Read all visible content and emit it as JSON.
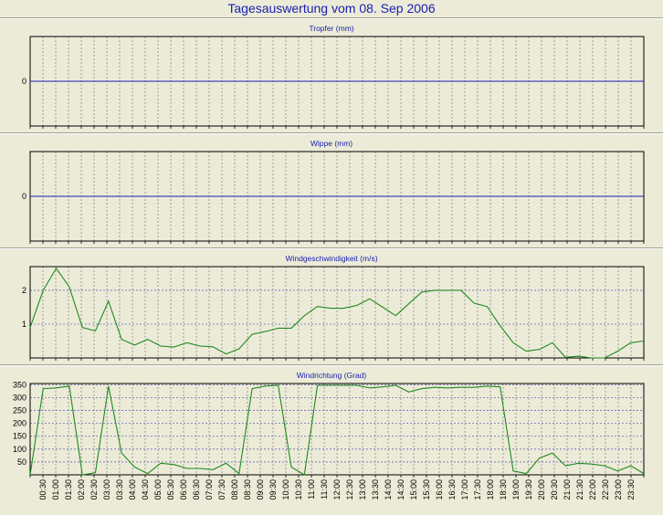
{
  "page": {
    "title": "Tagesauswertung vom 08. Sep 2006"
  },
  "chart_data": [
    {
      "type": "line",
      "title": "Tropfer (mm)",
      "ylim": [
        -1,
        1
      ],
      "yticks": [
        0
      ],
      "grid": true,
      "series": [
        {
          "color": "#1a22b0",
          "x_minutes": [
            0,
            1440
          ],
          "values": [
            0,
            0
          ]
        }
      ]
    },
    {
      "type": "line",
      "title": "Wippe (mm)",
      "ylim": [
        -1,
        1
      ],
      "yticks": [
        0
      ],
      "grid": true,
      "series": [
        {
          "color": "#1a22b0",
          "x_minutes": [
            0,
            1440
          ],
          "values": [
            0,
            0
          ]
        }
      ]
    },
    {
      "type": "line",
      "title": "Windgeschwindigkeit (m/s)",
      "ylim": [
        0,
        2.7
      ],
      "yticks": [
        1,
        2
      ],
      "grid": true,
      "series": [
        {
          "color": "#1f8a1f",
          "values": [
            0.9,
            2.0,
            2.65,
            2.1,
            0.9,
            0.8,
            1.68,
            0.55,
            0.38,
            0.55,
            0.35,
            0.32,
            0.45,
            0.35,
            0.33,
            0.12,
            0.27,
            0.7,
            0.78,
            0.88,
            0.88,
            1.25,
            1.52,
            1.47,
            1.47,
            1.55,
            1.75,
            1.5,
            1.25,
            1.6,
            1.95,
            2.0,
            2.0,
            2.0,
            1.62,
            1.52,
            0.95,
            0.45,
            0.2,
            0.25,
            0.45,
            0.02,
            0.05,
            0.0,
            0.0,
            0.2,
            0.45,
            0.5
          ]
        }
      ]
    },
    {
      "type": "line",
      "title": "Windrichtung (Grad)",
      "ylim": [
        0,
        355
      ],
      "yticks": [
        50,
        100,
        150,
        200,
        250,
        300,
        350
      ],
      "grid": true,
      "series": [
        {
          "color": "#1f8a1f",
          "values": [
            0,
            335,
            338,
            345,
            0,
            8,
            345,
            85,
            30,
            5,
            45,
            40,
            25,
            25,
            20,
            45,
            5,
            335,
            345,
            348,
            30,
            0,
            348,
            348,
            348,
            348,
            338,
            342,
            348,
            322,
            335,
            340,
            338,
            340,
            340,
            345,
            342,
            15,
            5,
            65,
            85,
            35,
            45,
            42,
            35,
            15,
            35,
            5
          ]
        }
      ]
    }
  ],
  "x_axis": {
    "tick_labels": [
      "00:30",
      "01:00",
      "01:30",
      "02:00",
      "02:30",
      "03:00",
      "03:30",
      "04:00",
      "04:30",
      "05:00",
      "05:30",
      "06:00",
      "06:30",
      "07:00",
      "07:30",
      "08:00",
      "08:30",
      "09:00",
      "09:30",
      "10:00",
      "10:30",
      "11:00",
      "11:30",
      "12:00",
      "12:30",
      "13:00",
      "13:30",
      "14:00",
      "14:30",
      "15:00",
      "15:30",
      "16:00",
      "16:30",
      "17:00",
      "17:30",
      "18:00",
      "18:30",
      "19:00",
      "19:30",
      "20:00",
      "20:30",
      "21:00",
      "21:30",
      "22:00",
      "22:30",
      "23:00",
      "23:30"
    ]
  }
}
